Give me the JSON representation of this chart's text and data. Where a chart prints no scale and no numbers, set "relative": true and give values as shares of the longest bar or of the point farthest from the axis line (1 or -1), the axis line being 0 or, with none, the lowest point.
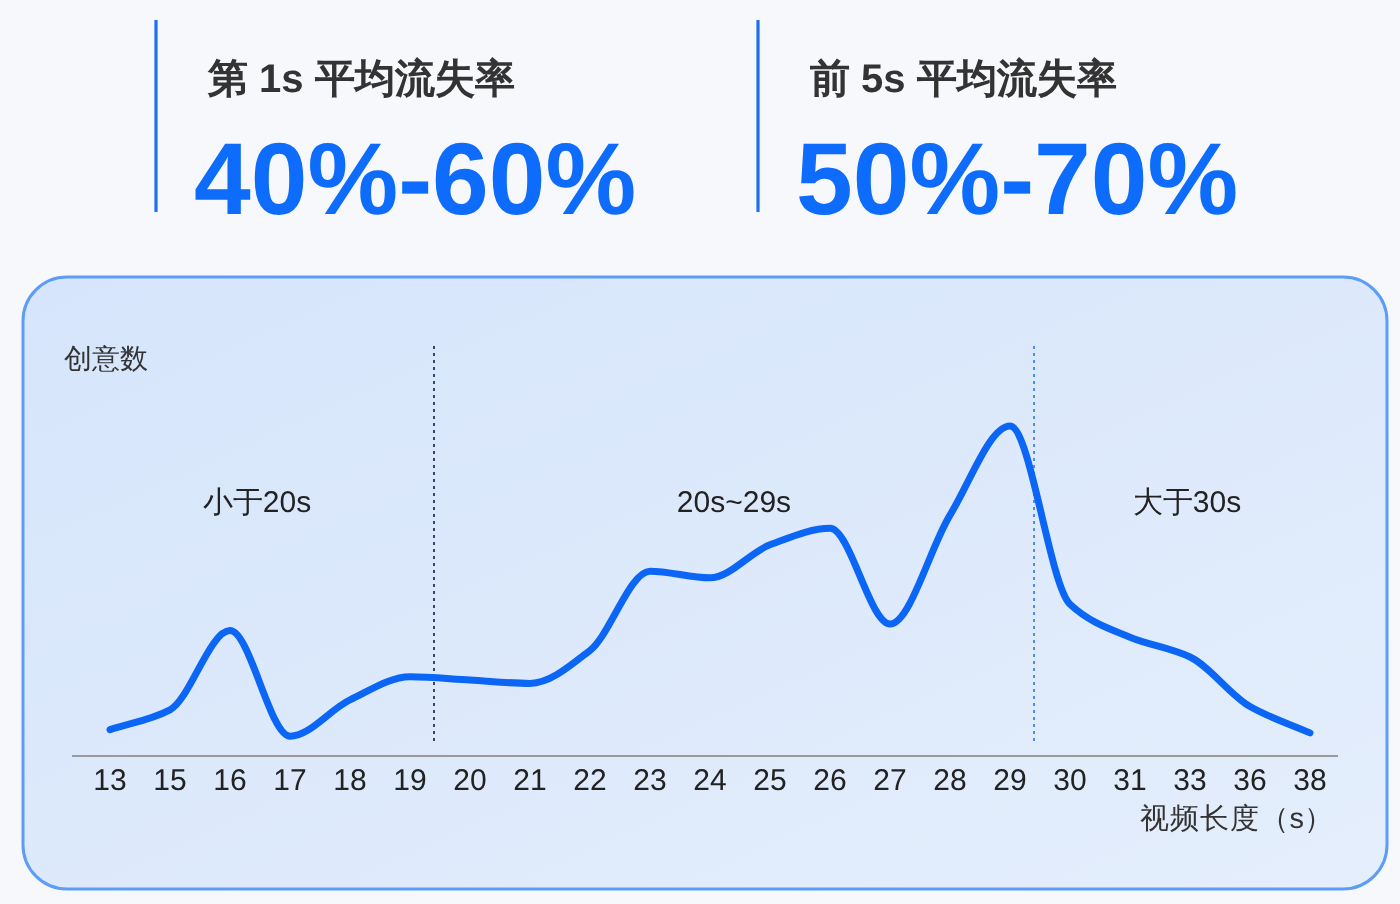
{
  "chart_data": [
    {
      "type": "other",
      "annotations": [
        "第 1s 平均流失率",
        "40%-60%",
        "前 5s 平均流失率",
        "50%-70%"
      ]
    },
    {
      "type": "line",
      "xlabel": "视频长度（s）",
      "ylabel": "创意数",
      "relative": true,
      "categories": [
        "13",
        "15",
        "16",
        "17",
        "18",
        "19",
        "20",
        "21",
        "22",
        "23",
        "24",
        "25",
        "26",
        "27",
        "28",
        "29",
        "30",
        "31",
        "33",
        "36",
        "38"
      ],
      "series": [
        {
          "color": "#0b66f6",
          "values": [
            0.08,
            0.14,
            0.38,
            0.06,
            0.17,
            0.24,
            0.23,
            0.22,
            0.32,
            0.56,
            0.54,
            0.64,
            0.69,
            0.4,
            0.73,
            1,
            0.46,
            0.36,
            0.3,
            0.15,
            0.07
          ]
        }
      ],
      "ref_lines": [
        {
          "axis": "x",
          "value": "19",
          "color": "#34466e",
          "line_style": "dotted"
        },
        {
          "axis": "x",
          "value": "29",
          "color": "#4d8ef5",
          "line_style": "dotted"
        }
      ],
      "annotations": [
        "小于20s",
        "20s~29s",
        "大于30s"
      ]
    }
  ]
}
